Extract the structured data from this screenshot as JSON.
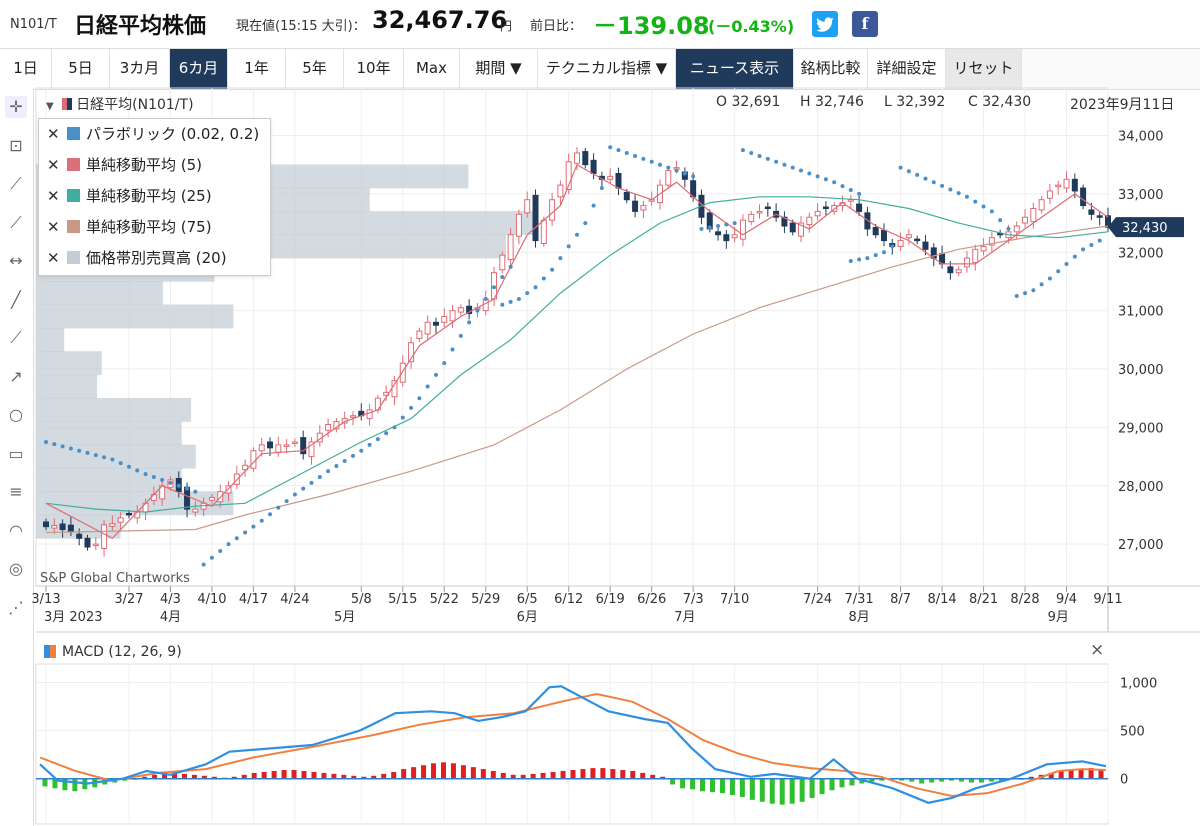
{
  "header": {
    "symbol": "N101/T",
    "name": "日経平均株価",
    "current_label": "現在値(15:15 大引)：",
    "price": "32,467.76",
    "price_unit": "円",
    "change_label": "前日比：",
    "change": "－139.08",
    "change_pct": "(－0.43%)",
    "twitter_icon": "twitter-icon",
    "facebook_icon": "facebook-icon"
  },
  "tabs": [
    {
      "label": "1日"
    },
    {
      "label": "5日"
    },
    {
      "label": "3カ月"
    },
    {
      "label": "6カ月",
      "selected": true
    },
    {
      "label": "1年"
    },
    {
      "label": "5年"
    },
    {
      "label": "10年"
    },
    {
      "label": "Max"
    },
    {
      "label": "期間 ▼"
    },
    {
      "label": "テクニカル指標 ▼"
    },
    {
      "label": "ニュース表示"
    },
    {
      "label": "銘柄比較"
    },
    {
      "label": "詳細設定"
    },
    {
      "label": "リセット"
    }
  ],
  "tools": [
    "crosshair-icon",
    "text-icon",
    "line-icon",
    "percent-line-icon",
    "horizontal-range-icon",
    "trend-line-icon",
    "polyline-icon",
    "arrow-line-icon",
    "circle-icon",
    "rectangle-icon",
    "fib-lines-icon",
    "arc-icon",
    "spiral-icon",
    "gann-fan-icon"
  ],
  "main_header": {
    "series_label": "日経平均(N101/T)",
    "o": "O 32,691",
    "h": "H 32,746",
    "l": "L 32,392",
    "c": "C 32,430",
    "date": "2023年9月11日"
  },
  "legend": [
    {
      "label": "パラボリック (0.02, 0.2)",
      "color": "#4a90c8"
    },
    {
      "label": "単純移動平均 (5)",
      "color": "#d9707a"
    },
    {
      "label": "単純移動平均 (25)",
      "color": "#3fae9c"
    },
    {
      "label": "単純移動平均 (75)",
      "color": "#c89a86"
    },
    {
      "label": "価格帯別売買高 (20)",
      "color": "#c4cdd5"
    }
  ],
  "watermark": "S&P Global Chartworks",
  "last_price_tag": "32,430",
  "macd_header": "MACD (12, 26, 9)",
  "macd_close": "×",
  "colors": {
    "up": "#e06a74",
    "down": "#1f3a5a",
    "sar": "#4a90c8",
    "ma5": "#e06a74",
    "ma25": "#3fae9c",
    "ma75": "#c89a86",
    "macd": "#2f8fe0",
    "signal": "#f08040",
    "hist_pos": "#e02020",
    "hist_neg": "#2ec02e",
    "vbp": "#c4cdd5"
  },
  "chart_data": [
    {
      "type": "candlestick",
      "ylim": [
        26300,
        34300
      ],
      "yticks": [
        "27,000",
        "28,000",
        "29,000",
        "30,000",
        "31,000",
        "32,000",
        "33,000",
        "34,000"
      ],
      "ytick_values": [
        27000,
        28000,
        29000,
        30000,
        31000,
        32000,
        33000,
        34000
      ],
      "x_tick_labels": [
        "3/13",
        "3/27",
        "4/3",
        "4/10",
        "4/17",
        "4/24",
        "5/8",
        "5/15",
        "5/22",
        "5/29",
        "6/5",
        "6/12",
        "6/19",
        "6/26",
        "7/3",
        "7/10",
        "7/24",
        "7/31",
        "8/7",
        "8/14",
        "8/21",
        "8/28",
        "9/4",
        "9/11"
      ],
      "x_tick_index": [
        0,
        10,
        15,
        20,
        25,
        30,
        38,
        43,
        48,
        53,
        58,
        63,
        68,
        73,
        78,
        83,
        93,
        98,
        103,
        108,
        113,
        118,
        123,
        128
      ],
      "month_labels": [
        {
          "label": "3月 2023",
          "index": 0
        },
        {
          "label": "4月",
          "index": 15
        },
        {
          "label": "5月",
          "index": 36
        },
        {
          "label": "6月",
          "index": 58
        },
        {
          "label": "7月",
          "index": 77
        },
        {
          "label": "8月",
          "index": 98
        },
        {
          "label": "9月",
          "index": 122
        }
      ],
      "close": [
        27300,
        27320,
        27250,
        27220,
        27100,
        26950,
        27000,
        27330,
        27350,
        27450,
        27500,
        27550,
        27700,
        27850,
        28000,
        28100,
        27900,
        27600,
        27600,
        27700,
        27800,
        27900,
        28000,
        28200,
        28350,
        28600,
        28700,
        28650,
        28700,
        28700,
        28750,
        28550,
        28750,
        28900,
        29050,
        29100,
        29150,
        29200,
        29200,
        29300,
        29500,
        29600,
        29800,
        30100,
        30450,
        30650,
        30800,
        30750,
        30900,
        31000,
        31050,
        30950,
        31050,
        31200,
        31650,
        31950,
        32300,
        32650,
        32900,
        32200,
        32550,
        32900,
        33150,
        33550,
        33700,
        33500,
        33350,
        33250,
        33300,
        33100,
        32900,
        32700,
        32800,
        32900,
        33150,
        33400,
        33450,
        33250,
        32950,
        32600,
        32400,
        32300,
        32200,
        32300,
        32550,
        32650,
        32700,
        32750,
        32600,
        32450,
        32350,
        32500,
        32600,
        32700,
        32750,
        32800,
        32850,
        32900,
        32700,
        32400,
        32300,
        32200,
        32100,
        32200,
        32300,
        32200,
        32050,
        31900,
        31800,
        31650,
        31700,
        31900,
        32050,
        32100,
        32250,
        32300,
        32350,
        32450,
        32600,
        32750,
        32900,
        33050,
        33150,
        33250,
        33050,
        32800,
        32650,
        32600,
        32430
      ],
      "ma5_path": [
        [
          0,
          27700
        ],
        [
          8,
          27100
        ],
        [
          14,
          28000
        ],
        [
          20,
          27650
        ],
        [
          26,
          28550
        ],
        [
          31,
          28600
        ],
        [
          36,
          29100
        ],
        [
          40,
          29300
        ],
        [
          45,
          30400
        ],
        [
          50,
          30900
        ],
        [
          54,
          31200
        ],
        [
          58,
          32300
        ],
        [
          62,
          32800
        ],
        [
          64,
          33500
        ],
        [
          69,
          33100
        ],
        [
          73,
          32900
        ],
        [
          76,
          33200
        ],
        [
          80,
          32700
        ],
        [
          84,
          32300
        ],
        [
          88,
          32650
        ],
        [
          92,
          32400
        ],
        [
          96,
          32850
        ],
        [
          100,
          32450
        ],
        [
          104,
          32200
        ],
        [
          108,
          31800
        ],
        [
          112,
          31800
        ],
        [
          116,
          32200
        ],
        [
          120,
          32600
        ],
        [
          124,
          33000
        ],
        [
          128,
          32600
        ]
      ],
      "ma25_path": [
        [
          0,
          27700
        ],
        [
          6,
          27600
        ],
        [
          12,
          27550
        ],
        [
          18,
          27650
        ],
        [
          24,
          27700
        ],
        [
          30,
          28150
        ],
        [
          38,
          28750
        ],
        [
          44,
          29150
        ],
        [
          50,
          29900
        ],
        [
          56,
          30500
        ],
        [
          62,
          31300
        ],
        [
          68,
          31950
        ],
        [
          74,
          32500
        ],
        [
          80,
          32850
        ],
        [
          86,
          32950
        ],
        [
          92,
          32950
        ],
        [
          98,
          32900
        ],
        [
          104,
          32750
        ],
        [
          110,
          32500
        ],
        [
          116,
          32300
        ],
        [
          122,
          32250
        ],
        [
          128,
          32350
        ]
      ],
      "ma75_path": [
        [
          0,
          27200
        ],
        [
          18,
          27250
        ],
        [
          24,
          27500
        ],
        [
          34,
          27850
        ],
        [
          44,
          28250
        ],
        [
          54,
          28700
        ],
        [
          62,
          29300
        ],
        [
          70,
          30000
        ],
        [
          78,
          30600
        ],
        [
          86,
          31050
        ],
        [
          94,
          31400
        ],
        [
          102,
          31750
        ],
        [
          110,
          32050
        ],
        [
          118,
          32250
        ],
        [
          128,
          32450
        ]
      ],
      "sar_segments": [
        [
          [
            0,
            28750
          ],
          [
            4,
            28600
          ],
          [
            8,
            28450
          ],
          [
            12,
            28200
          ],
          [
            16,
            28000
          ],
          [
            18,
            27900
          ]
        ],
        [
          [
            19,
            26650
          ],
          [
            22,
            27000
          ],
          [
            26,
            27400
          ],
          [
            30,
            27850
          ],
          [
            34,
            28250
          ],
          [
            38,
            28600
          ],
          [
            42,
            29000
          ],
          [
            45,
            29500
          ],
          [
            48,
            30100
          ],
          [
            51,
            30800
          ],
          [
            54,
            31400
          ],
          [
            56,
            31750
          ]
        ],
        [
          [
            55,
            31100
          ],
          [
            57,
            31200
          ],
          [
            59,
            31400
          ],
          [
            61,
            31700
          ],
          [
            63,
            32100
          ],
          [
            65,
            32500
          ],
          [
            66,
            32800
          ],
          [
            67,
            33100
          ]
        ],
        [
          [
            68,
            33800
          ],
          [
            72,
            33600
          ],
          [
            76,
            33400
          ],
          [
            78,
            33300
          ]
        ],
        [
          [
            79,
            32400
          ],
          [
            81,
            32450
          ],
          [
            83,
            32500
          ]
        ],
        [
          [
            84,
            33750
          ],
          [
            87,
            33600
          ],
          [
            91,
            33400
          ],
          [
            95,
            33200
          ],
          [
            98,
            33000
          ]
        ],
        [
          [
            97,
            31850
          ],
          [
            99,
            31900
          ],
          [
            101,
            32000
          ],
          [
            102,
            32100
          ]
        ],
        [
          [
            103,
            33450
          ],
          [
            107,
            33200
          ],
          [
            111,
            32950
          ],
          [
            114,
            32700
          ],
          [
            116,
            32400
          ]
        ],
        [
          [
            117,
            31250
          ],
          [
            119,
            31350
          ],
          [
            121,
            31550
          ],
          [
            123,
            31800
          ],
          [
            125,
            32050
          ],
          [
            127,
            32200
          ]
        ]
      ],
      "vbp": [
        {
          "price": 34100,
          "w": 0.0
        },
        {
          "price": 33700,
          "w": 0.0
        },
        {
          "price": 33300,
          "w": 0.92
        },
        {
          "price": 32900,
          "w": 0.71
        },
        {
          "price": 32500,
          "w": 1.06
        },
        {
          "price": 32100,
          "w": 1.0
        },
        {
          "price": 31700,
          "w": 0.38
        },
        {
          "price": 31300,
          "w": 0.27
        },
        {
          "price": 30900,
          "w": 0.42
        },
        {
          "price": 30500,
          "w": 0.06
        },
        {
          "price": 30100,
          "w": 0.14
        },
        {
          "price": 29700,
          "w": 0.13
        },
        {
          "price": 29300,
          "w": 0.33
        },
        {
          "price": 28900,
          "w": 0.31
        },
        {
          "price": 28500,
          "w": 0.34
        },
        {
          "price": 28100,
          "w": 0.31
        },
        {
          "price": 27700,
          "w": 0.42
        },
        {
          "price": 27300,
          "w": 0.18
        }
      ]
    },
    {
      "type": "line",
      "name": "MACD",
      "ylim": [
        -450,
        1150
      ],
      "yticks": [
        "1,000",
        "500",
        "0"
      ],
      "ytick_values": [
        1000,
        500,
        0
      ],
      "macd_path": [
        [
          0,
          150
        ],
        [
          3,
          -20
        ],
        [
          8,
          -50
        ],
        [
          14,
          0
        ],
        [
          18,
          80
        ],
        [
          22,
          40
        ],
        [
          28,
          150
        ],
        [
          32,
          280
        ],
        [
          40,
          320
        ],
        [
          46,
          350
        ],
        [
          54,
          500
        ],
        [
          60,
          680
        ],
        [
          66,
          700
        ],
        [
          70,
          680
        ],
        [
          74,
          600
        ],
        [
          78,
          640
        ],
        [
          82,
          700
        ],
        [
          86,
          950
        ],
        [
          88,
          960
        ],
        [
          92,
          830
        ],
        [
          96,
          700
        ],
        [
          102,
          620
        ],
        [
          106,
          580
        ],
        [
          110,
          320
        ],
        [
          114,
          100
        ],
        [
          120,
          20
        ],
        [
          124,
          50
        ],
        [
          130,
          0
        ],
        [
          134,
          200
        ],
        [
          138,
          0
        ],
        [
          144,
          -100
        ],
        [
          150,
          -250
        ],
        [
          154,
          -200
        ],
        [
          158,
          -100
        ],
        [
          164,
          0
        ],
        [
          170,
          150
        ],
        [
          176,
          180
        ],
        [
          180,
          130
        ]
      ],
      "signal_path": [
        [
          0,
          220
        ],
        [
          6,
          80
        ],
        [
          12,
          -20
        ],
        [
          20,
          60
        ],
        [
          28,
          100
        ],
        [
          36,
          220
        ],
        [
          46,
          330
        ],
        [
          56,
          450
        ],
        [
          64,
          560
        ],
        [
          72,
          640
        ],
        [
          80,
          680
        ],
        [
          88,
          800
        ],
        [
          94,
          880
        ],
        [
          100,
          800
        ],
        [
          106,
          620
        ],
        [
          112,
          400
        ],
        [
          118,
          260
        ],
        [
          124,
          160
        ],
        [
          130,
          110
        ],
        [
          136,
          80
        ],
        [
          142,
          20
        ],
        [
          148,
          -100
        ],
        [
          154,
          -180
        ],
        [
          160,
          -150
        ],
        [
          166,
          -50
        ],
        [
          172,
          80
        ],
        [
          176,
          100
        ],
        [
          180,
          90
        ]
      ],
      "histogram": [
        -80,
        -100,
        -120,
        -130,
        -110,
        -90,
        -60,
        -40,
        -20,
        0,
        20,
        40,
        60,
        60,
        50,
        40,
        30,
        20,
        10,
        20,
        40,
        60,
        70,
        80,
        90,
        90,
        80,
        70,
        60,
        50,
        40,
        30,
        20,
        30,
        50,
        70,
        100,
        120,
        140,
        160,
        170,
        160,
        140,
        120,
        100,
        80,
        60,
        40,
        40,
        50,
        60,
        70,
        80,
        90,
        100,
        110,
        110,
        100,
        90,
        80,
        60,
        40,
        20,
        -60,
        -100,
        -110,
        -130,
        -140,
        -150,
        -170,
        -190,
        -220,
        -240,
        -260,
        -270,
        -260,
        -240,
        -200,
        -160,
        -120,
        -90,
        -70,
        -50,
        -30,
        -20,
        -10,
        -20,
        -30,
        -50,
        -40,
        -30,
        -20,
        -30,
        -40,
        -40,
        -30,
        -20,
        -10,
        0,
        20,
        40,
        60,
        80,
        90,
        100,
        110,
        100
      ]
    }
  ]
}
